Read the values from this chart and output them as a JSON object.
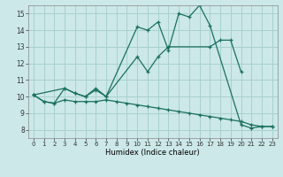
{
  "xlabel": "Humidex (Indice chaleur)",
  "bg_color": "#cce8e8",
  "grid_color": "#a8d0d0",
  "line_color": "#1a7060",
  "xlim": [
    -0.5,
    23.5
  ],
  "ylim": [
    7.5,
    15.5
  ],
  "xticks": [
    0,
    1,
    2,
    3,
    4,
    5,
    6,
    7,
    8,
    9,
    10,
    11,
    12,
    13,
    14,
    15,
    16,
    17,
    18,
    19,
    20,
    21,
    22,
    23
  ],
  "yticks": [
    8,
    9,
    10,
    11,
    12,
    13,
    14,
    15
  ],
  "line1_x": [
    0,
    1,
    2,
    3,
    4,
    5,
    6,
    7,
    10,
    11,
    12,
    13,
    14,
    15,
    16,
    17,
    20,
    21,
    22,
    23
  ],
  "line1_y": [
    10.1,
    9.7,
    9.6,
    10.5,
    10.2,
    10.0,
    10.5,
    10.0,
    14.2,
    14.0,
    14.5,
    12.8,
    15.0,
    14.8,
    15.5,
    14.3,
    8.3,
    8.1,
    8.2,
    8.2
  ],
  "line2_x": [
    0,
    3,
    4,
    5,
    6,
    7,
    10,
    11,
    12,
    13,
    17,
    18,
    19,
    20
  ],
  "line2_y": [
    10.1,
    10.5,
    10.2,
    10.0,
    10.4,
    10.0,
    12.4,
    11.5,
    12.4,
    13.0,
    13.0,
    13.4,
    13.4,
    11.5
  ],
  "line3_x": [
    0,
    1,
    2,
    3,
    4,
    5,
    6,
    7,
    8,
    9,
    10,
    11,
    12,
    13,
    14,
    15,
    16,
    17,
    18,
    19,
    20,
    21,
    22,
    23
  ],
  "line3_y": [
    10.1,
    9.7,
    9.6,
    9.8,
    9.7,
    9.7,
    9.7,
    9.8,
    9.7,
    9.6,
    9.5,
    9.4,
    9.3,
    9.2,
    9.1,
    9.0,
    8.9,
    8.8,
    8.7,
    8.6,
    8.5,
    8.3,
    8.2,
    8.2
  ]
}
